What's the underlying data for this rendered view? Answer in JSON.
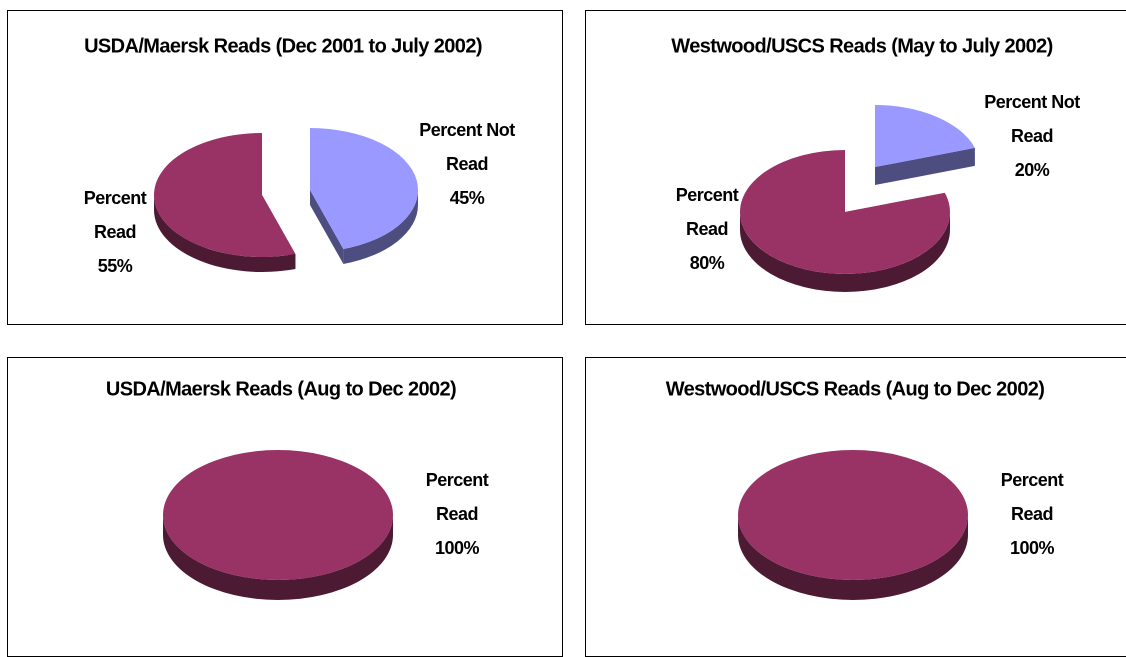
{
  "chart_data": [
    {
      "type": "pie",
      "title": "USDA/Maersk Reads (Dec 2001 to July 2002)",
      "categories": [
        "Percent Read",
        "Percent Not Read"
      ],
      "values": [
        55,
        45
      ],
      "value_labels": [
        "55%",
        "45%"
      ],
      "colors": [
        "#993366",
        "#9999ff"
      ]
    },
    {
      "type": "pie",
      "title": "Westwood/USCS Reads (May to July 2002)",
      "categories": [
        "Percent Read",
        "Percent Not Read"
      ],
      "values": [
        80,
        20
      ],
      "value_labels": [
        "80%",
        "20%"
      ],
      "colors": [
        "#993366",
        "#9999ff"
      ]
    },
    {
      "type": "pie",
      "title": "USDA/Maersk Reads (Aug to Dec 2002)",
      "categories": [
        "Percent Read"
      ],
      "values": [
        100
      ],
      "value_labels": [
        "100%"
      ],
      "colors": [
        "#993366"
      ]
    },
    {
      "type": "pie",
      "title": "Westwood/USCS Reads (Aug to Dec 2002)",
      "categories": [
        "Percent Read"
      ],
      "values": [
        100
      ],
      "value_labels": [
        "100%"
      ],
      "colors": [
        "#993366"
      ]
    }
  ]
}
